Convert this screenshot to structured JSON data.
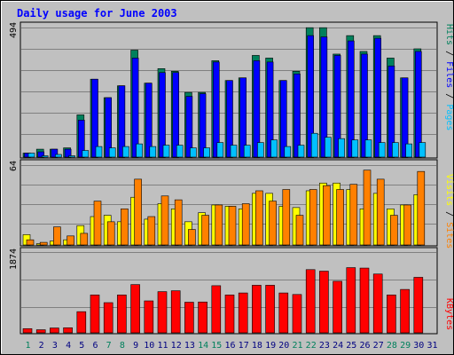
{
  "title": "Daily usage for June 2003",
  "colors": {
    "hits": "#00805c",
    "files": "#0000ff",
    "pages": "#00c0ff",
    "visits": "#ffff00",
    "sites": "#ff8000",
    "kbytes": "#ff0000",
    "title": "#0000ff",
    "weekend_day": "#00805c",
    "weekday_day": "#000080",
    "panel_bg": "#c0c0c0",
    "frame_bg": "#ffffff"
  },
  "chart_data": [
    {
      "type": "bar",
      "panel": "hits-files-pages",
      "title": "Daily usage for June 2003",
      "ymax_label": "494",
      "ylim": [
        0,
        494
      ],
      "side_labels": [
        "Pages",
        "Files",
        "Hits"
      ],
      "categories": [
        "1",
        "2",
        "3",
        "4",
        "5",
        "6",
        "7",
        "8",
        "9",
        "10",
        "11",
        "12",
        "13",
        "14",
        "15",
        "16",
        "17",
        "18",
        "19",
        "20",
        "21",
        "22",
        "23",
        "24",
        "25",
        "26",
        "27",
        "28",
        "29",
        "30",
        "31"
      ],
      "series": [
        {
          "name": "Hits",
          "values": [
            15,
            30,
            30,
            35,
            160,
            295,
            225,
            270,
            405,
            280,
            335,
            325,
            245,
            245,
            365,
            290,
            300,
            385,
            375,
            290,
            325,
            490,
            490,
            390,
            460,
            400,
            460,
            375,
            300,
            410,
            0
          ]
        },
        {
          "name": "Files",
          "values": [
            15,
            20,
            30,
            30,
            140,
            295,
            225,
            270,
            375,
            280,
            320,
            320,
            230,
            240,
            360,
            290,
            300,
            365,
            360,
            290,
            315,
            460,
            455,
            385,
            440,
            390,
            450,
            345,
            300,
            400,
            0
          ]
        },
        {
          "name": "Pages",
          "values": [
            15,
            5,
            10,
            5,
            25,
            40,
            35,
            40,
            50,
            40,
            45,
            45,
            35,
            35,
            55,
            45,
            45,
            55,
            65,
            40,
            45,
            90,
            75,
            70,
            65,
            65,
            55,
            55,
            50,
            55,
            0
          ]
        }
      ]
    },
    {
      "type": "bar",
      "panel": "visits-sites",
      "ymax_label": "64",
      "ylim": [
        0,
        64
      ],
      "side_labels": [
        "Sites",
        "Visits"
      ],
      "categories": [
        "1",
        "2",
        "3",
        "4",
        "5",
        "6",
        "7",
        "8",
        "9",
        "10",
        "11",
        "12",
        "13",
        "14",
        "15",
        "16",
        "17",
        "18",
        "19",
        "20",
        "21",
        "22",
        "23",
        "24",
        "25",
        "26",
        "27",
        "28",
        "29",
        "30",
        "31"
      ],
      "series": [
        {
          "name": "Visits",
          "values": [
            8,
            1,
            3,
            4,
            15,
            22,
            23,
            18,
            37,
            20,
            32,
            28,
            18,
            25,
            31,
            30,
            28,
            40,
            40,
            30,
            29,
            42,
            48,
            48,
            43,
            28,
            40,
            28,
            31,
            39,
            0
          ]
        },
        {
          "name": "Sites",
          "values": [
            4,
            2,
            14,
            7,
            9,
            34,
            18,
            28,
            51,
            22,
            38,
            35,
            12,
            23,
            31,
            30,
            32,
            42,
            34,
            43,
            23,
            43,
            46,
            43,
            47,
            58,
            51,
            23,
            31,
            57,
            0
          ]
        }
      ]
    },
    {
      "type": "bar",
      "panel": "kbytes",
      "ymax_label": "1874",
      "ylim": [
        0,
        1874
      ],
      "side_labels": [
        "KBytes"
      ],
      "categories": [
        "1",
        "2",
        "3",
        "4",
        "5",
        "6",
        "7",
        "8",
        "9",
        "10",
        "11",
        "12",
        "13",
        "14",
        "15",
        "16",
        "17",
        "18",
        "19",
        "20",
        "21",
        "22",
        "23",
        "24",
        "25",
        "26",
        "27",
        "28",
        "29",
        "30",
        "31"
      ],
      "series": [
        {
          "name": "KBytes",
          "values": [
            95,
            70,
            110,
            115,
            480,
            860,
            685,
            860,
            1095,
            725,
            935,
            955,
            695,
            700,
            1070,
            860,
            905,
            1080,
            1080,
            905,
            870,
            1435,
            1400,
            1170,
            1480,
            1470,
            1335,
            860,
            985,
            1260,
            0
          ]
        }
      ]
    }
  ],
  "day_labels": [
    {
      "text": "1",
      "weekend": true
    },
    {
      "text": "2",
      "weekend": false
    },
    {
      "text": "3",
      "weekend": false
    },
    {
      "text": "4",
      "weekend": false
    },
    {
      "text": "5",
      "weekend": false
    },
    {
      "text": "6",
      "weekend": false
    },
    {
      "text": "7",
      "weekend": true
    },
    {
      "text": "8",
      "weekend": true
    },
    {
      "text": "9",
      "weekend": false
    },
    {
      "text": "10",
      "weekend": false
    },
    {
      "text": "11",
      "weekend": false
    },
    {
      "text": "12",
      "weekend": false
    },
    {
      "text": "13",
      "weekend": false
    },
    {
      "text": "14",
      "weekend": true
    },
    {
      "text": "15",
      "weekend": true
    },
    {
      "text": "16",
      "weekend": false
    },
    {
      "text": "17",
      "weekend": false
    },
    {
      "text": "18",
      "weekend": false
    },
    {
      "text": "19",
      "weekend": false
    },
    {
      "text": "20",
      "weekend": false
    },
    {
      "text": "21",
      "weekend": true
    },
    {
      "text": "22",
      "weekend": true
    },
    {
      "text": "23",
      "weekend": false
    },
    {
      "text": "24",
      "weekend": false
    },
    {
      "text": "25",
      "weekend": false
    },
    {
      "text": "26",
      "weekend": false
    },
    {
      "text": "27",
      "weekend": false
    },
    {
      "text": "28",
      "weekend": true
    },
    {
      "text": "29",
      "weekend": true
    },
    {
      "text": "30",
      "weekend": false
    },
    {
      "text": "31",
      "weekend": false
    }
  ]
}
